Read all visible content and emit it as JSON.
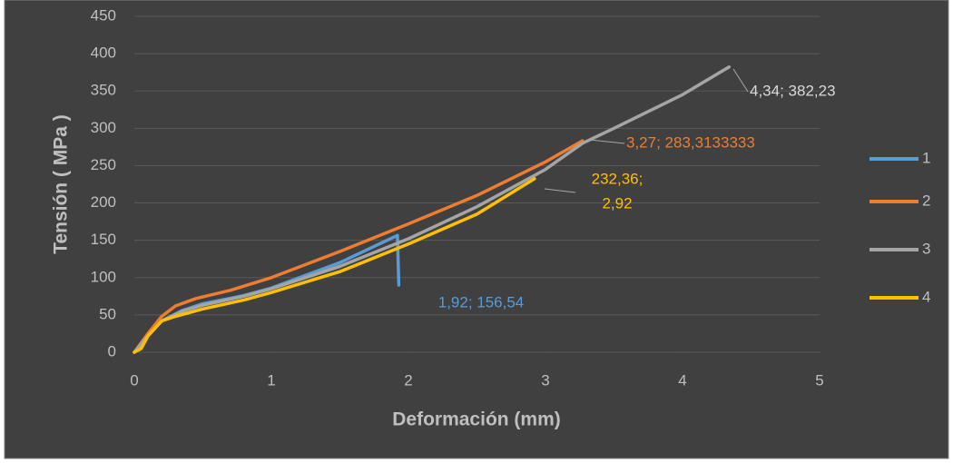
{
  "chart_data": {
    "type": "line",
    "xlabel": "Deformación (mm)",
    "ylabel": "Tensión ( MPa )",
    "xlim": [
      0,
      5
    ],
    "xticks": [
      0,
      1,
      2,
      3,
      4,
      5
    ],
    "ylim": [
      0,
      450
    ],
    "yticks": [
      0,
      50,
      100,
      150,
      200,
      250,
      300,
      350,
      400,
      450
    ],
    "grid": true,
    "legend": "right",
    "series": [
      {
        "name": "1",
        "color": "#5b9bd5",
        "x": [
          0,
          0.1,
          0.2,
          0.35,
          0.5,
          0.8,
          1,
          1.5,
          1.92,
          1.93
        ],
        "values": [
          0,
          22,
          42,
          56,
          65,
          76,
          86,
          120,
          156.54,
          90
        ]
      },
      {
        "name": "2",
        "color": "#ed7d31",
        "x": [
          0,
          0.1,
          0.2,
          0.3,
          0.45,
          0.7,
          1,
          1.5,
          2,
          2.5,
          3,
          3.27
        ],
        "values": [
          0,
          25,
          48,
          62,
          72,
          83,
          100,
          135,
          172,
          210,
          255,
          283.3133333
        ]
      },
      {
        "name": "3",
        "color": "#a5a5a5",
        "x": [
          0,
          0.1,
          0.2,
          0.35,
          0.5,
          0.8,
          1,
          1.5,
          2,
          2.5,
          3,
          3.27,
          3.5,
          4,
          4.34
        ],
        "values": [
          0,
          22,
          42,
          55,
          63,
          75,
          85,
          115,
          152,
          195,
          245,
          280,
          300,
          345,
          382.23
        ]
      },
      {
        "name": "4",
        "color": "#ffc000",
        "x": [
          0,
          0.05,
          0.1,
          0.2,
          0.3,
          0.5,
          0.8,
          1,
          1.5,
          2,
          2.5,
          2.92
        ],
        "values": [
          0,
          5,
          22,
          42,
          48,
          58,
          70,
          80,
          108,
          145,
          185,
          232.36
        ]
      }
    ],
    "annotations": [
      {
        "lines": [
          "1,92; 156,54"
        ],
        "color": "#5b9bd5"
      },
      {
        "lines": [
          "3,27; 283,3133333"
        ],
        "color": "#ed7d31"
      },
      {
        "lines": [
          "4,34; 382,23"
        ],
        "color": "#d9d9d9"
      },
      {
        "lines": [
          "232,36;",
          "2,92"
        ],
        "color": "#ffc000"
      }
    ]
  }
}
